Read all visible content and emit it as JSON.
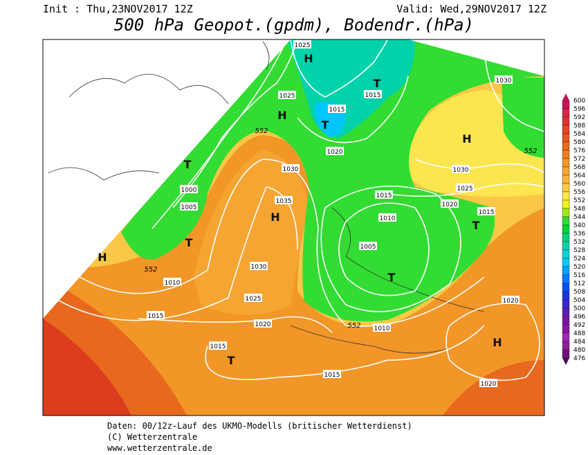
{
  "header": {
    "init": "Init : Thu,23NOV2017 12Z",
    "valid": "Valid: Wed,29NOV2017 12Z",
    "title": "500 hPa Geopot.(gpdm), Bodendr.(hPa)"
  },
  "map": {
    "centers": [
      "H",
      "H",
      "H",
      "H",
      "H",
      "H",
      "T",
      "T",
      "T",
      "T",
      "T",
      "T",
      "T"
    ],
    "isobar_labels": [
      "1025",
      "1015",
      "1025",
      "1015",
      "1020",
      "1030",
      "1030",
      "1000",
      "1005",
      "1035",
      "1030",
      "1025",
      "1020",
      "1015",
      "1010",
      "1015",
      "1005",
      "1030",
      "1010",
      "1025",
      "1015",
      "1020",
      "1010",
      "1015",
      "1020",
      "1015",
      "1020"
    ],
    "height_labels": [
      "552",
      "552",
      "552",
      "552"
    ]
  },
  "legend": {
    "levels": [
      600,
      596,
      592,
      588,
      584,
      580,
      576,
      572,
      568,
      564,
      560,
      556,
      552,
      548,
      544,
      540,
      536,
      532,
      528,
      524,
      520,
      516,
      512,
      508,
      504,
      500,
      496,
      492,
      488,
      484,
      480,
      476
    ],
    "colors": [
      "#c8145a",
      "#d22846",
      "#dc3232",
      "#e04628",
      "#e4581e",
      "#e8691e",
      "#ee7d1e",
      "#f29628",
      "#f5a532",
      "#f8b43c",
      "#fac846",
      "#fce650",
      "#f0f01e",
      "#a0e61e",
      "#32dc32",
      "#00d232",
      "#00d278",
      "#00d2aa",
      "#00d2d2",
      "#00c8ff",
      "#00a0ff",
      "#0078ff",
      "#0050f0",
      "#1e32dc",
      "#3c28c8",
      "#5a1eb4",
      "#7814a0",
      "#8c14a0",
      "#a028b4",
      "#8c1e96",
      "#6e1478"
    ]
  },
  "footer": {
    "lines": [
      "Daten: 00/12z-Lauf des UKMO-Modells (britischer Wetterdienst)",
      "(C) Wetterzentrale",
      "www.wetterzentrale.de"
    ]
  }
}
